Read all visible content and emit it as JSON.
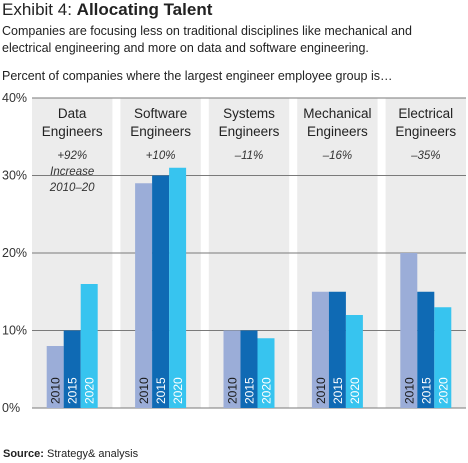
{
  "header": {
    "exhibit": "Exhibit 4:",
    "title": "Allocating Talent",
    "subtitle": "Companies are focusing less on traditional disciplines like mechanical and electrical engineering and more on data and software engineering.",
    "lead": "Percent of companies where the largest engineer employee group is…"
  },
  "source": {
    "label": "Source:",
    "text": "Strategy& analysis"
  },
  "chart_data": {
    "type": "bar",
    "ylim": [
      0,
      40
    ],
    "yticks": [
      "0%",
      "10%",
      "20%",
      "30%",
      "40%"
    ],
    "grid": true,
    "groups": [
      {
        "name_line1": "Data",
        "name_line2": "Engineers",
        "change": "+92%",
        "note_line1": "Increase",
        "note_line2": "2010–20",
        "values": [
          8,
          10,
          16
        ]
      },
      {
        "name_line1": "Software",
        "name_line2": "Engineers",
        "change": "+10%",
        "values": [
          29,
          30,
          31
        ]
      },
      {
        "name_line1": "Systems",
        "name_line2": "Engineers",
        "change": "–11%",
        "values": [
          10,
          10,
          9
        ]
      },
      {
        "name_line1": "Mechanical",
        "name_line2": "Engineers",
        "change": "–16%",
        "values": [
          15,
          15,
          12
        ]
      },
      {
        "name_line1": "Electrical",
        "name_line2": "Engineers",
        "change": "–35%",
        "values": [
          20,
          15,
          13
        ]
      }
    ],
    "series": [
      {
        "name": "2010",
        "color": "#9badd8"
      },
      {
        "name": "2015",
        "color": "#0f6ab4"
      },
      {
        "name": "2020",
        "color": "#37c4ef"
      }
    ],
    "panel_color": "#ececec",
    "grid_color": "#7a7a7a"
  }
}
